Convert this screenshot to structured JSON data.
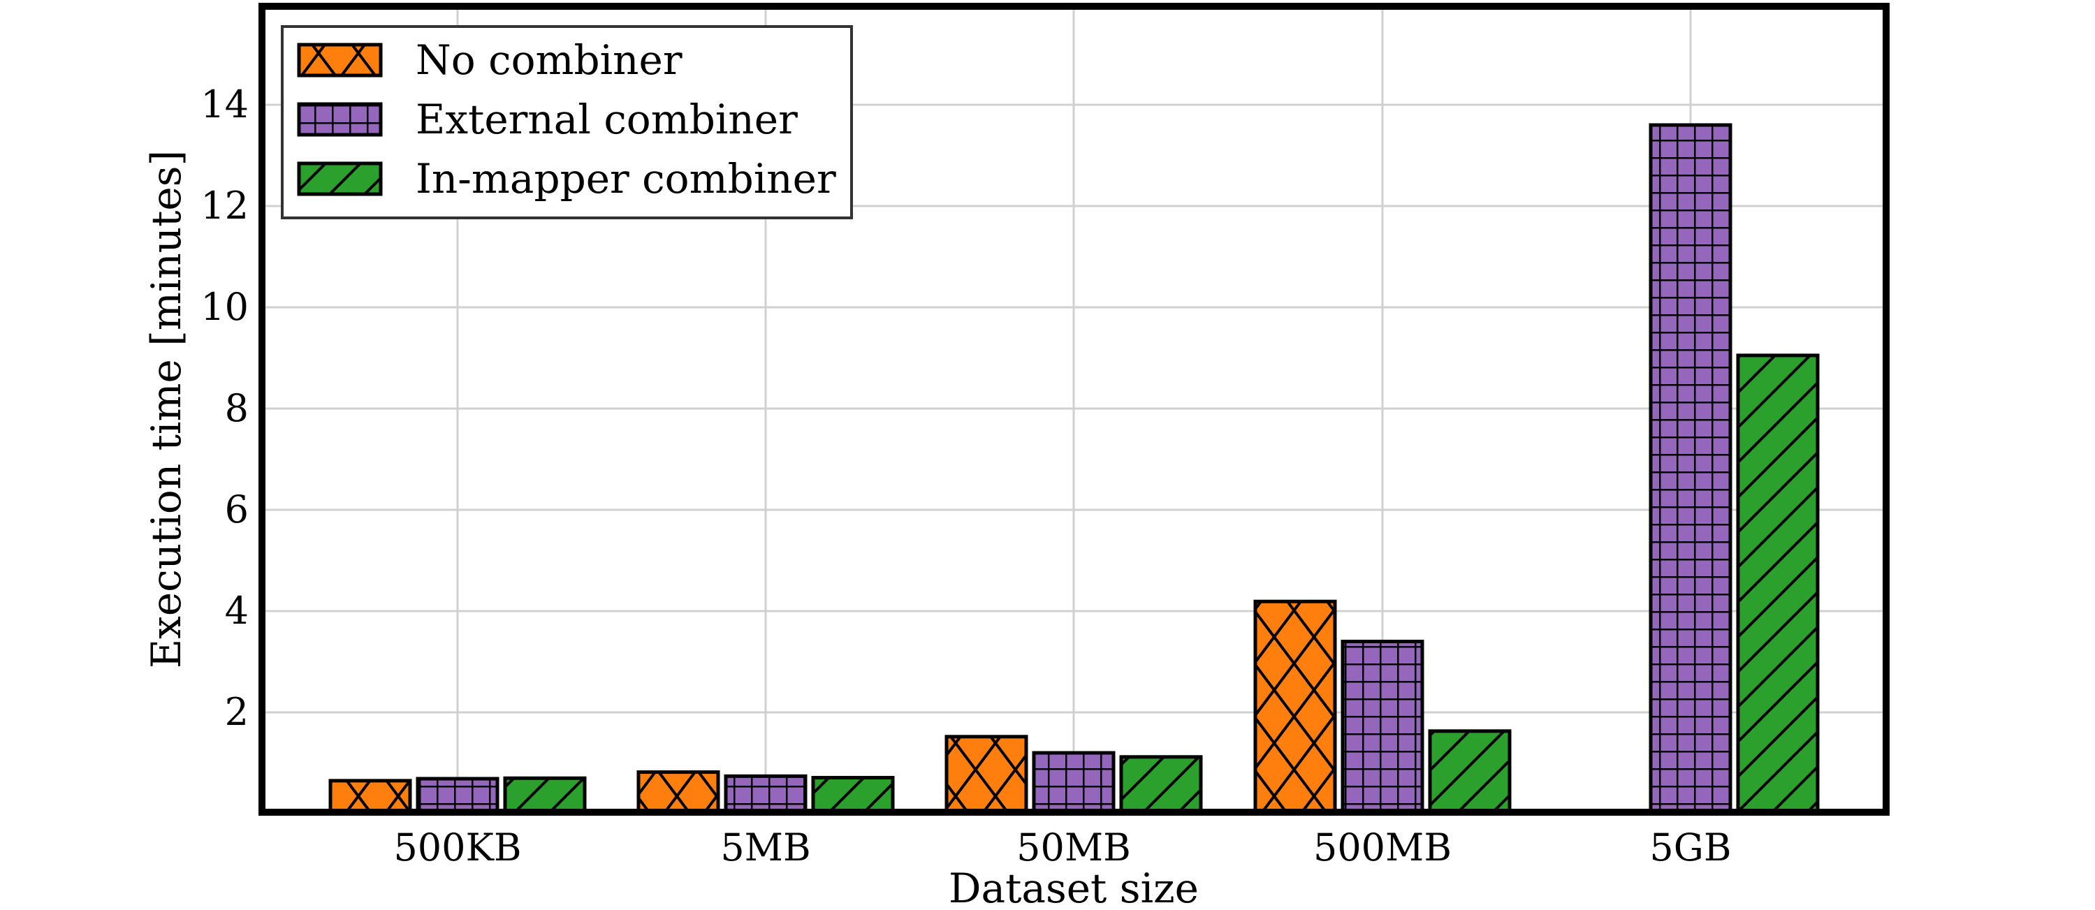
{
  "chart_data": {
    "type": "bar",
    "title": "",
    "xlabel": "Dataset size",
    "ylabel": "Execution time [minutes]",
    "categories": [
      "500KB",
      "5MB",
      "50MB",
      "500MB",
      "5GB"
    ],
    "series": [
      {
        "name": "No combiner",
        "color": "#ff7f0e",
        "hatch": "crosshatch-diagonal",
        "values": [
          0.65,
          0.82,
          1.52,
          4.19,
          null
        ]
      },
      {
        "name": "External combiner",
        "color": "#9467bd",
        "hatch": "grid",
        "values": [
          0.69,
          0.74,
          1.2,
          3.4,
          13.6
        ]
      },
      {
        "name": "In-mapper combiner",
        "color": "#2ca02c",
        "hatch": "diagonal",
        "values": [
          0.7,
          0.71,
          1.12,
          1.63,
          9.05
        ]
      }
    ],
    "ylim": [
      0,
      16
    ],
    "yticks": [
      2,
      4,
      6,
      8,
      10,
      12,
      14
    ],
    "grid": true,
    "legend_position": "upper left"
  }
}
